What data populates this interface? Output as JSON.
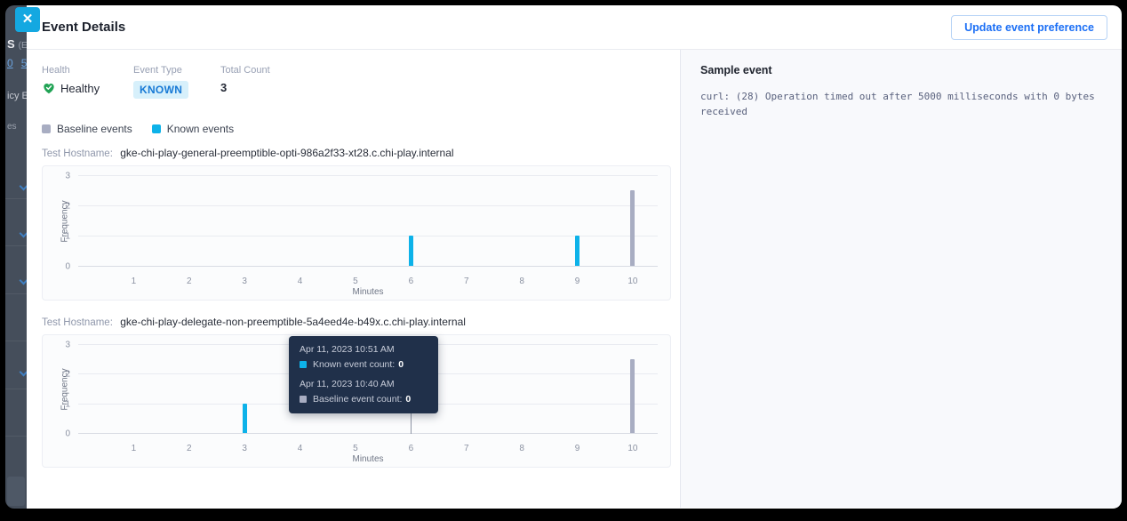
{
  "window": {
    "close_glyph": "✕"
  },
  "modal": {
    "title": "Event Details",
    "update_button": "Update event preference"
  },
  "stats": {
    "health": {
      "label": "Health",
      "value": "Healthy"
    },
    "event_type": {
      "label": "Event Type",
      "value": "KNOWN"
    },
    "total_count": {
      "label": "Total Count",
      "value": "3"
    }
  },
  "legend": [
    {
      "label": "Baseline events",
      "color": "#a8adc2"
    },
    {
      "label": "Known events",
      "color": "#0db2e9"
    }
  ],
  "colors": {
    "known": "#0db2e9",
    "baseline": "#a8adc2",
    "accent_blue": "#1a6ef5",
    "close_button": "#14a8e1",
    "healthy_green": "#21a355",
    "tooltip_bg": "#20304a"
  },
  "chart_data": [
    {
      "type": "bar",
      "host_label": "Test Hostname:",
      "title": "gke-chi-play-general-preemptible-opti-986a2f33-xt28.c.chi-play.internal",
      "xlabel": "Minutes",
      "ylabel": "Frequency",
      "xticks": [
        1,
        2,
        3,
        4,
        5,
        6,
        7,
        8,
        9,
        10
      ],
      "yticks": [
        0,
        1,
        2,
        3
      ],
      "ylim": [
        0,
        3
      ],
      "x_scale_max": 10.45,
      "grid": true,
      "series": [
        {
          "name": "Known events",
          "color": "#0db2e9",
          "points": [
            {
              "x": 6,
              "y": 1
            },
            {
              "x": 9,
              "y": 1
            }
          ]
        },
        {
          "name": "Baseline events",
          "color": "#a8adc2",
          "points": [
            {
              "x": 10,
              "y": 2.5
            }
          ]
        }
      ]
    },
    {
      "type": "bar",
      "host_label": "Test Hostname:",
      "title": "gke-chi-play-delegate-non-preemptible-5a4eed4e-b49x.c.chi-play.internal",
      "xlabel": "Minutes",
      "ylabel": "Frequency",
      "xticks": [
        1,
        2,
        3,
        4,
        5,
        6,
        7,
        8,
        9,
        10
      ],
      "yticks": [
        0,
        1,
        2,
        3
      ],
      "ylim": [
        0,
        3
      ],
      "x_scale_max": 10.45,
      "grid": true,
      "crosshair_x": 6,
      "series": [
        {
          "name": "Known events",
          "color": "#0db2e9",
          "points": [
            {
              "x": 3,
              "y": 1
            }
          ]
        },
        {
          "name": "Baseline events",
          "color": "#a8adc2",
          "points": [
            {
              "x": 10,
              "y": 2.5
            }
          ]
        }
      ]
    }
  ],
  "tooltip": {
    "entries": [
      {
        "time": "Apr 11, 2023 10:51 AM",
        "label": "Known event count:",
        "value": "0",
        "color": "#0db2e9"
      },
      {
        "time": "Apr 11, 2023 10:40 AM",
        "label": "Baseline event count:",
        "value": "0",
        "color": "#a8adc2"
      }
    ]
  },
  "sample": {
    "title": "Sample event",
    "text": "curl: (28) Operation timed out after 5000 milliseconds with 0 bytes received"
  },
  "sidebar": {
    "row1_bold": "S",
    "row1_dim": "(Ex",
    "link1": "0",
    "link2": "5",
    "row2": "icy E",
    "row3": "es"
  }
}
